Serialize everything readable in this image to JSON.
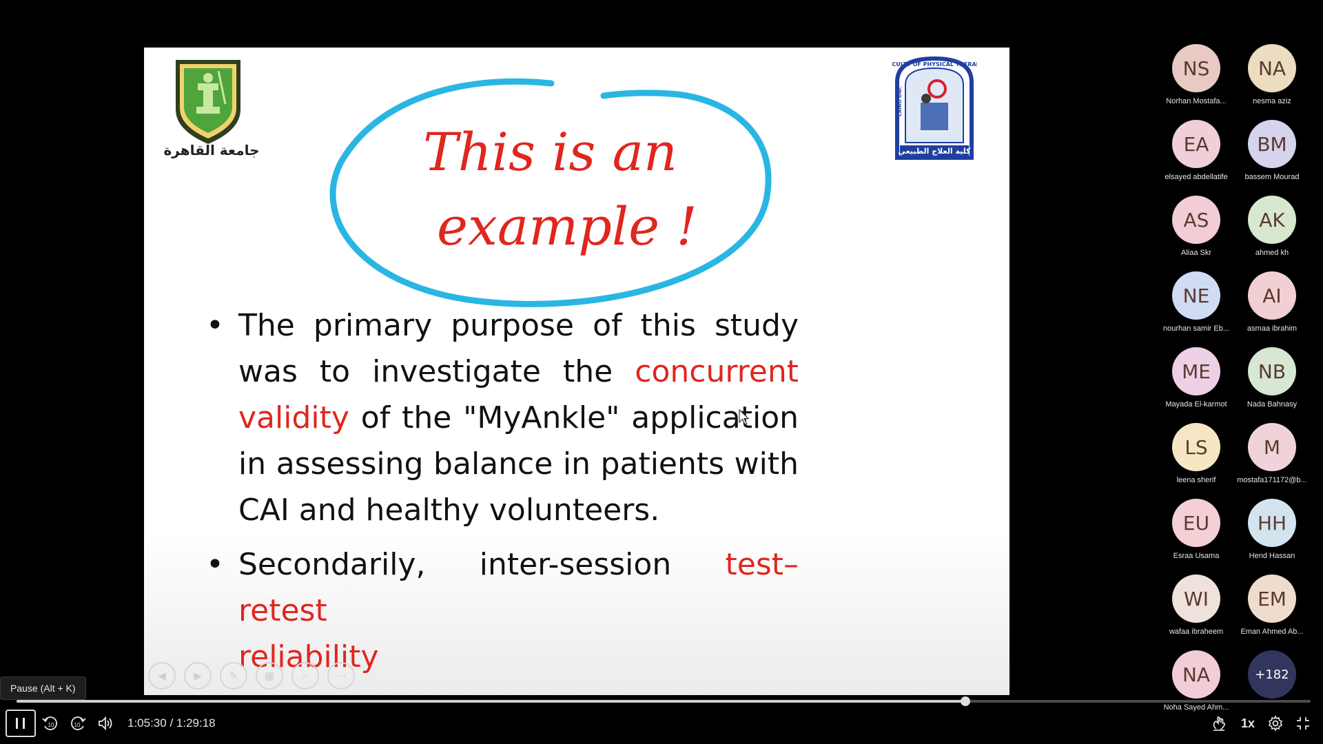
{
  "slide": {
    "logo_left_text": "جامعة القاهرة",
    "logo_right_text": "كلية العلاج الطبيعي",
    "logo_right_ring": "FACULTY OF PHYSICAL THERAPY",
    "logo_right_side": "CAIRO UNI.",
    "handwriting_line1": "This is an",
    "handwriting_line2": "example !",
    "bullet1_part1": " The primary purpose of this study was to investigate the ",
    "bullet1_highlight": "concurrent validity",
    "bullet1_part2": " of the \"MyAnkle\" application in assessing balance in patients with CAI and healthy volunteers.",
    "bullet2_part1": "Secondarily, inter-session ",
    "bullet2_highlight_a": "test–retest",
    "bullet2_highlight_b": "reliability",
    "bullet_glyph": "•",
    "accent_red": "#e0261e",
    "circle_blue": "#29b6e3"
  },
  "participants": [
    {
      "initials": "NS",
      "name": "Norhan Mostafa...",
      "color": "#e8c9c3"
    },
    {
      "initials": "NA",
      "name": "nesma aziz",
      "color": "#ecdcc0"
    },
    {
      "initials": "EA",
      "name": "elsayed abdellatife",
      "color": "#f0cfd8"
    },
    {
      "initials": "BM",
      "name": "bassem Mourad",
      "color": "#d6d3ee"
    },
    {
      "initials": "AS",
      "name": "Aliaa Skr",
      "color": "#f3cdd6"
    },
    {
      "initials": "AK",
      "name": "ahmed kh",
      "color": "#d8e8cf"
    },
    {
      "initials": "NE",
      "name": "nourhan samir Eb...",
      "color": "#cfdcf2"
    },
    {
      "initials": "AI",
      "name": "asmaa ibrahim",
      "color": "#f1cfd3"
    },
    {
      "initials": "ME",
      "name": "Mayada El-karmot",
      "color": "#ecd1e6"
    },
    {
      "initials": "NB",
      "name": "Nada Bahnasy",
      "color": "#d8e6d4"
    },
    {
      "initials": "LS",
      "name": "leena sherif",
      "color": "#f6e6c4"
    },
    {
      "initials": "M",
      "name": "mostafa171172@b...",
      "color": "#f0d3d9"
    },
    {
      "initials": "EU",
      "name": "Esraa Usama",
      "color": "#f4cfd6"
    },
    {
      "initials": "HH",
      "name": "Hend Hassan",
      "color": "#d4e4ef"
    },
    {
      "initials": "WI",
      "name": "wafaa ibraheem",
      "color": "#efe1dc"
    },
    {
      "initials": "EM",
      "name": "Eman Ahmed Ab...",
      "color": "#f0dccd"
    },
    {
      "initials": "NA",
      "name": "Noha Sayed Ahm...",
      "color": "#f2ccd6"
    },
    {
      "initials": "+182",
      "name": "",
      "color": "#32365f"
    }
  ],
  "player": {
    "tooltip": "Pause (Alt + K)",
    "time": "1:05:30 / 1:29:18",
    "speed": "1x",
    "progress": 0.7334,
    "rewind_label": "10",
    "forward_label": "10"
  }
}
